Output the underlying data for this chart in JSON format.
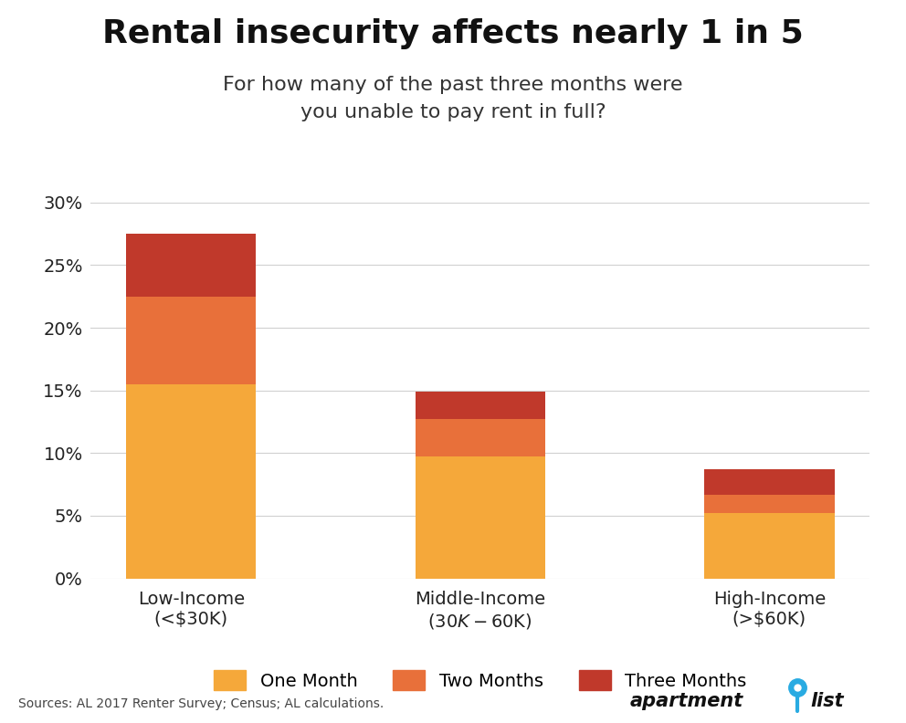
{
  "title": "Rental insecurity affects nearly 1 in 5",
  "subtitle": "For how many of the past three months were\nyou unable to pay rent in full?",
  "categories": [
    "Low-Income\n(<$30K)",
    "Middle-Income\n($30K-$60K)",
    "High-Income\n(>$60K)"
  ],
  "one_month": [
    15.5,
    9.7,
    5.2
  ],
  "two_months": [
    7.0,
    3.0,
    1.5
  ],
  "three_months": [
    5.0,
    2.2,
    2.0
  ],
  "colors": {
    "one_month": "#F5A83A",
    "two_months": "#E8703A",
    "three_months": "#C0392B"
  },
  "ylim": [
    0,
    30
  ],
  "yticks": [
    0,
    5,
    10,
    15,
    20,
    25,
    30
  ],
  "bar_width": 0.45,
  "source_text": "Sources: AL 2017 Renter Survey; Census; AL calculations.",
  "legend_labels": [
    "One Month",
    "Two Months",
    "Three Months"
  ],
  "background_color": "#ffffff",
  "title_fontsize": 26,
  "subtitle_fontsize": 16,
  "tick_fontsize": 14,
  "xlabel_fontsize": 14
}
